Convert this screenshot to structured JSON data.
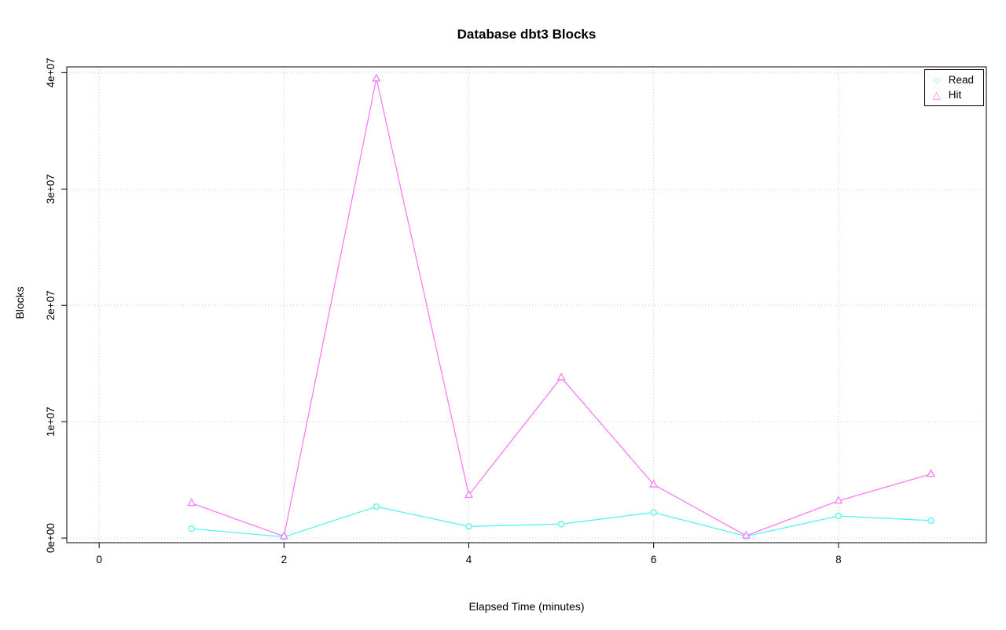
{
  "chart_data": {
    "type": "line",
    "title": "Database dbt3 Blocks",
    "xlabel": "Elapsed Time (minutes)",
    "ylabel": "Blocks",
    "x": [
      1,
      2,
      3,
      4,
      5,
      6,
      7,
      8,
      9
    ],
    "series": [
      {
        "name": "Read",
        "color": "#57F2F2",
        "marker": "circle",
        "values": [
          800000,
          100000,
          2700000,
          1000000,
          1200000,
          2200000,
          150000,
          1900000,
          1500000
        ]
      },
      {
        "name": "Hit",
        "color": "#F97DF5",
        "marker": "triangle",
        "values": [
          3000000,
          150000,
          39500000,
          3700000,
          13800000,
          4600000,
          200000,
          3200000,
          5500000
        ]
      }
    ],
    "xticks": [
      0,
      2,
      4,
      6,
      8
    ],
    "yticks": [
      0,
      10000000,
      20000000,
      30000000,
      40000000
    ],
    "ytick_labels": [
      "0e+00",
      "1e+07",
      "2e+07",
      "3e+07",
      "4e+07"
    ],
    "xlim": [
      -0.35,
      9.6
    ],
    "ylim": [
      -400000,
      40500000
    ],
    "grid": true,
    "grid_color": "#C9C9C9",
    "axis_color": "#000000",
    "legend": {
      "position": "top-right",
      "entries": [
        {
          "label": "Read"
        },
        {
          "label": "Hit"
        }
      ]
    }
  }
}
